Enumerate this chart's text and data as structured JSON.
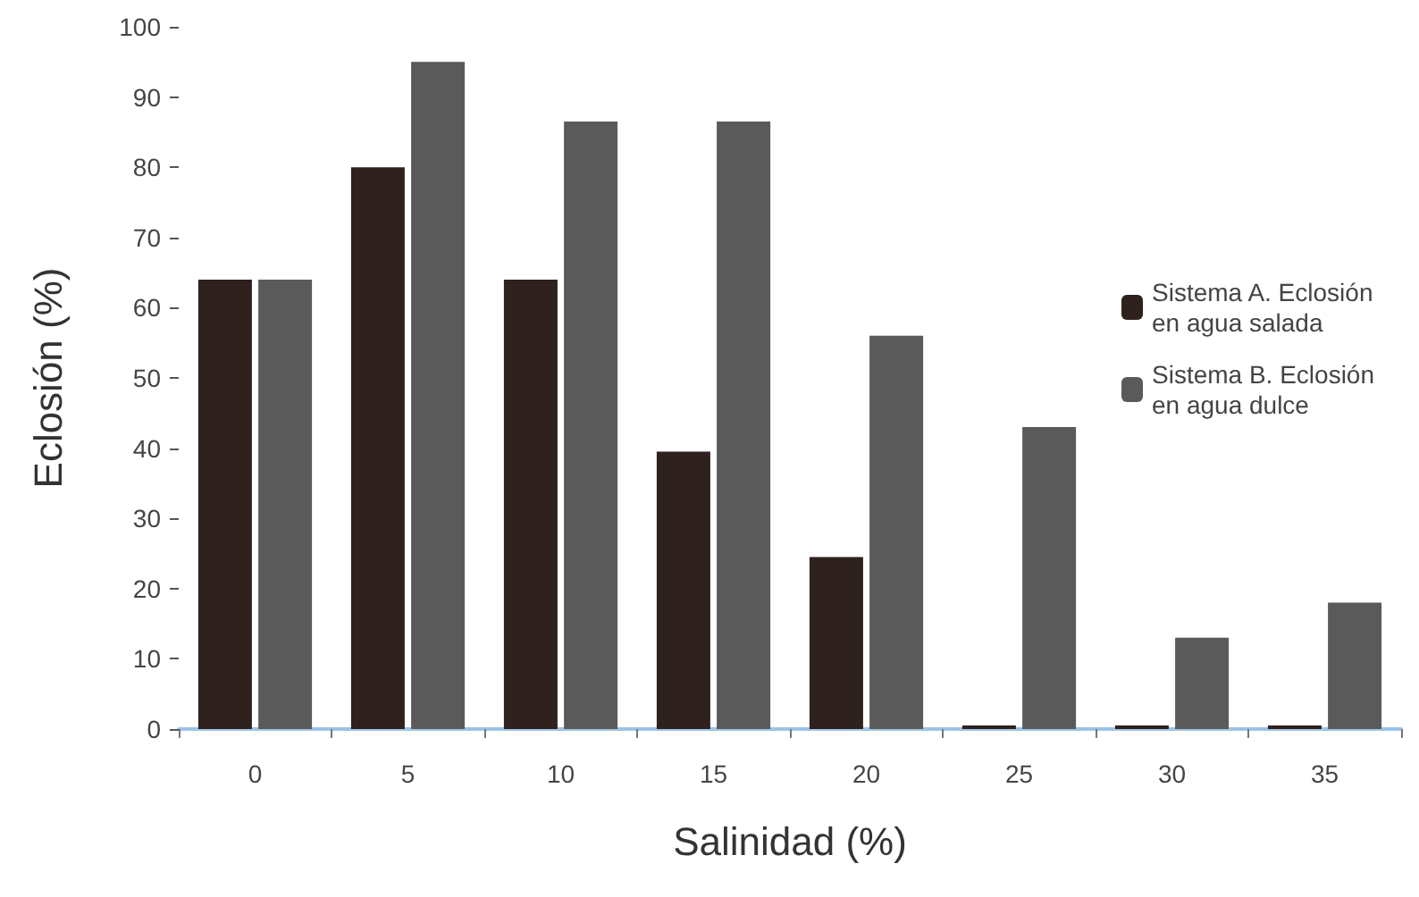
{
  "chart_data": {
    "type": "bar",
    "xlabel": "Salinidad (%)",
    "ylabel": "Eclosión (%)",
    "categories": [
      "0",
      "5",
      "10",
      "15",
      "20",
      "25",
      "30",
      "35"
    ],
    "series": [
      {
        "name": "Sistema A. Eclosión\nen agua salada",
        "color": "#2e211e",
        "values": [
          64,
          80,
          64,
          39.5,
          24.5,
          0.5,
          0.5,
          0.5
        ]
      },
      {
        "name": "Sistema B. Eclosión\nen agua dulce",
        "color": "#5a5a5a",
        "values": [
          64,
          95,
          86.5,
          86.5,
          56,
          43,
          13,
          18
        ]
      }
    ],
    "ylim": [
      0,
      100
    ],
    "yticks": [
      0,
      10,
      20,
      30,
      40,
      50,
      60,
      70,
      80,
      90,
      100
    ],
    "grid": false,
    "legend": "right"
  }
}
